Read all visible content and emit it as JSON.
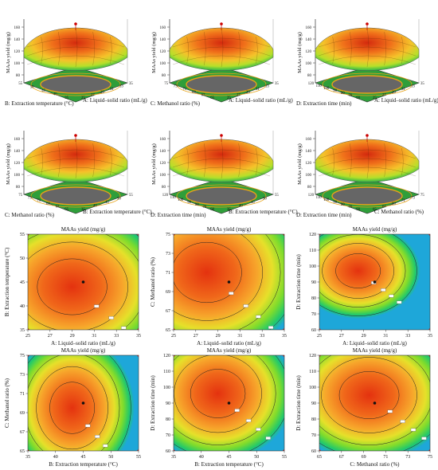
{
  "figure": {
    "surface_plots": [
      {
        "ylabel": "MAAs yield (mg/g)",
        "back_label": "B: Extraction temperature (°C)",
        "front_label": "A: Liquid–solid ratio (mL/g)",
        "z_ticks": [
          "160",
          "140",
          "120",
          "100",
          "80"
        ],
        "back_ticks": [
          "55",
          "50",
          "45",
          "40",
          "35"
        ],
        "front_ticks": [
          "35",
          "33",
          "31",
          "29",
          "27",
          "25"
        ]
      },
      {
        "ylabel": "MAAs yield (mg/g)",
        "back_label": "C: Methanol ratio (%)",
        "front_label": "A: Liquid–solid ratio (mL/g)",
        "z_ticks": [
          "160",
          "140",
          "120",
          "100",
          "80"
        ],
        "back_ticks": [
          "75",
          "73",
          "71",
          "69",
          "67",
          "65"
        ],
        "front_ticks": [
          "35",
          "33",
          "31",
          "29",
          "27",
          "25"
        ]
      },
      {
        "ylabel": "MAAs yield (mg/g)",
        "back_label": "D: Extraction time (min)",
        "front_label": "A: Liquid–solid ratio (mL/g)",
        "z_ticks": [
          "160",
          "140",
          "120",
          "100",
          "80"
        ],
        "back_ticks": [
          "120",
          "110",
          "100",
          "90",
          "80",
          "70",
          "60"
        ],
        "front_ticks": [
          "35",
          "33",
          "31",
          "29",
          "27",
          "25"
        ]
      },
      {
        "ylabel": "MAAs yield (mg/g)",
        "back_label": "C: Methanol ratio (%)",
        "front_label": "B: Extraction temperature (°C)",
        "z_ticks": [
          "160",
          "140",
          "120",
          "100",
          "80"
        ],
        "back_ticks": [
          "75",
          "73",
          "71",
          "69",
          "67",
          "65"
        ],
        "front_ticks": [
          "55",
          "50",
          "45",
          "40",
          "35"
        ]
      },
      {
        "ylabel": "MAAs yield (mg/g)",
        "back_label": "D: Extraction time (min)",
        "front_label": "B: Extraction temperature (°C)",
        "z_ticks": [
          "160",
          "140",
          "120",
          "100",
          "80"
        ],
        "back_ticks": [
          "120",
          "110",
          "100",
          "90",
          "80",
          "70",
          "60"
        ],
        "front_ticks": [
          "55",
          "50",
          "45",
          "40",
          "35"
        ]
      },
      {
        "ylabel": "MAAs yield (mg/g)",
        "back_label": "D: Extraction time (min)",
        "front_label": "C: Methanol ratio (%)",
        "z_ticks": [
          "160",
          "140",
          "120",
          "100",
          "80"
        ],
        "back_ticks": [
          "120",
          "110",
          "100",
          "90",
          "80",
          "70",
          "60"
        ],
        "front_ticks": [
          "75",
          "73",
          "71",
          "69",
          "67",
          "65"
        ]
      }
    ]
  },
  "chart_data": [
    {
      "type": "heatmap",
      "title": "MAAs yield (mg/g)",
      "xlabel": "A: Liquid–solid ratio (mL/g)",
      "ylabel": "B: Extraction temperature (°C)",
      "x_ticks": [
        "25",
        "27",
        "29",
        "31",
        "33",
        "35"
      ],
      "y_ticks": [
        "35",
        "40",
        "45",
        "50",
        "55"
      ],
      "xlim": [
        25,
        35
      ],
      "ylim": [
        35,
        55
      ],
      "optimum": {
        "x": 30,
        "y": 45
      },
      "center": {
        "x": 29,
        "y": 44
      },
      "spread": {
        "x": 7,
        "y": 13
      }
    },
    {
      "type": "heatmap",
      "title": "MAAs yield (mg/g)",
      "xlabel": "A: Liquid–solid ratio (mL/g)",
      "ylabel": "C: Methanol ratio (%)",
      "x_ticks": [
        "25",
        "27",
        "29",
        "31",
        "33",
        "35"
      ],
      "y_ticks": [
        "65",
        "67",
        "69",
        "71",
        "73",
        "75"
      ],
      "xlim": [
        25,
        35
      ],
      "ylim": [
        65,
        75
      ],
      "optimum": {
        "x": 30,
        "y": 70
      },
      "center": {
        "x": 28,
        "y": 71
      },
      "spread": {
        "x": 7,
        "y": 7
      }
    },
    {
      "type": "heatmap",
      "title": "MAAs yield (mg/g)",
      "xlabel": "A: Liquid–solid ratio (mL/g)",
      "ylabel": "D: Extraction time (min)",
      "x_ticks": [
        "25",
        "27",
        "29",
        "31",
        "33",
        "35"
      ],
      "y_ticks": [
        "60",
        "70",
        "80",
        "90",
        "100",
        "110",
        "120"
      ],
      "xlim": [
        25,
        35
      ],
      "ylim": [
        60,
        120
      ],
      "optimum": {
        "x": 30,
        "y": 90
      },
      "center": {
        "x": 28.5,
        "y": 97
      },
      "spread": {
        "x": 4.5,
        "y": 24
      }
    },
    {
      "type": "heatmap",
      "title": "MAAs yield (mg/g)",
      "xlabel": "B: Extraction temperature (°C)",
      "ylabel": "C: Methanol ratio (%)",
      "x_ticks": [
        "35",
        "40",
        "45",
        "50",
        "55"
      ],
      "y_ticks": [
        "65",
        "67",
        "69",
        "71",
        "73",
        "75"
      ],
      "xlim": [
        35,
        55
      ],
      "ylim": [
        65,
        75
      ],
      "optimum": {
        "x": 45,
        "y": 70
      },
      "center": {
        "x": 43,
        "y": 69.5
      },
      "spread": {
        "x": 9,
        "y": 6
      }
    },
    {
      "type": "heatmap",
      "title": "MAAs yield (mg/g)",
      "xlabel": "B: Extraction temperature (°C)",
      "ylabel": "D: Extraction time (min)",
      "x_ticks": [
        "35",
        "40",
        "45",
        "50",
        "55"
      ],
      "y_ticks": [
        "60",
        "70",
        "80",
        "90",
        "100",
        "110",
        "120"
      ],
      "xlim": [
        35,
        55
      ],
      "ylim": [
        60,
        120
      ],
      "optimum": {
        "x": 45,
        "y": 90
      },
      "center": {
        "x": 43,
        "y": 96
      },
      "spread": {
        "x": 11,
        "y": 34
      }
    },
    {
      "type": "heatmap",
      "title": "MAAs yield (mg/g)",
      "xlabel": "C: Methanol ratio (%)",
      "ylabel": "D: Extraction time (min)",
      "x_ticks": [
        "65",
        "67",
        "69",
        "71",
        "73",
        "75"
      ],
      "y_ticks": [
        "60",
        "70",
        "80",
        "90",
        "100",
        "110",
        "120"
      ],
      "xlim": [
        65,
        75
      ],
      "ylim": [
        60,
        120
      ],
      "optimum": {
        "x": 70,
        "y": 90
      },
      "center": {
        "x": 69.5,
        "y": 95
      },
      "spread": {
        "x": 6,
        "y": 33
      }
    }
  ]
}
